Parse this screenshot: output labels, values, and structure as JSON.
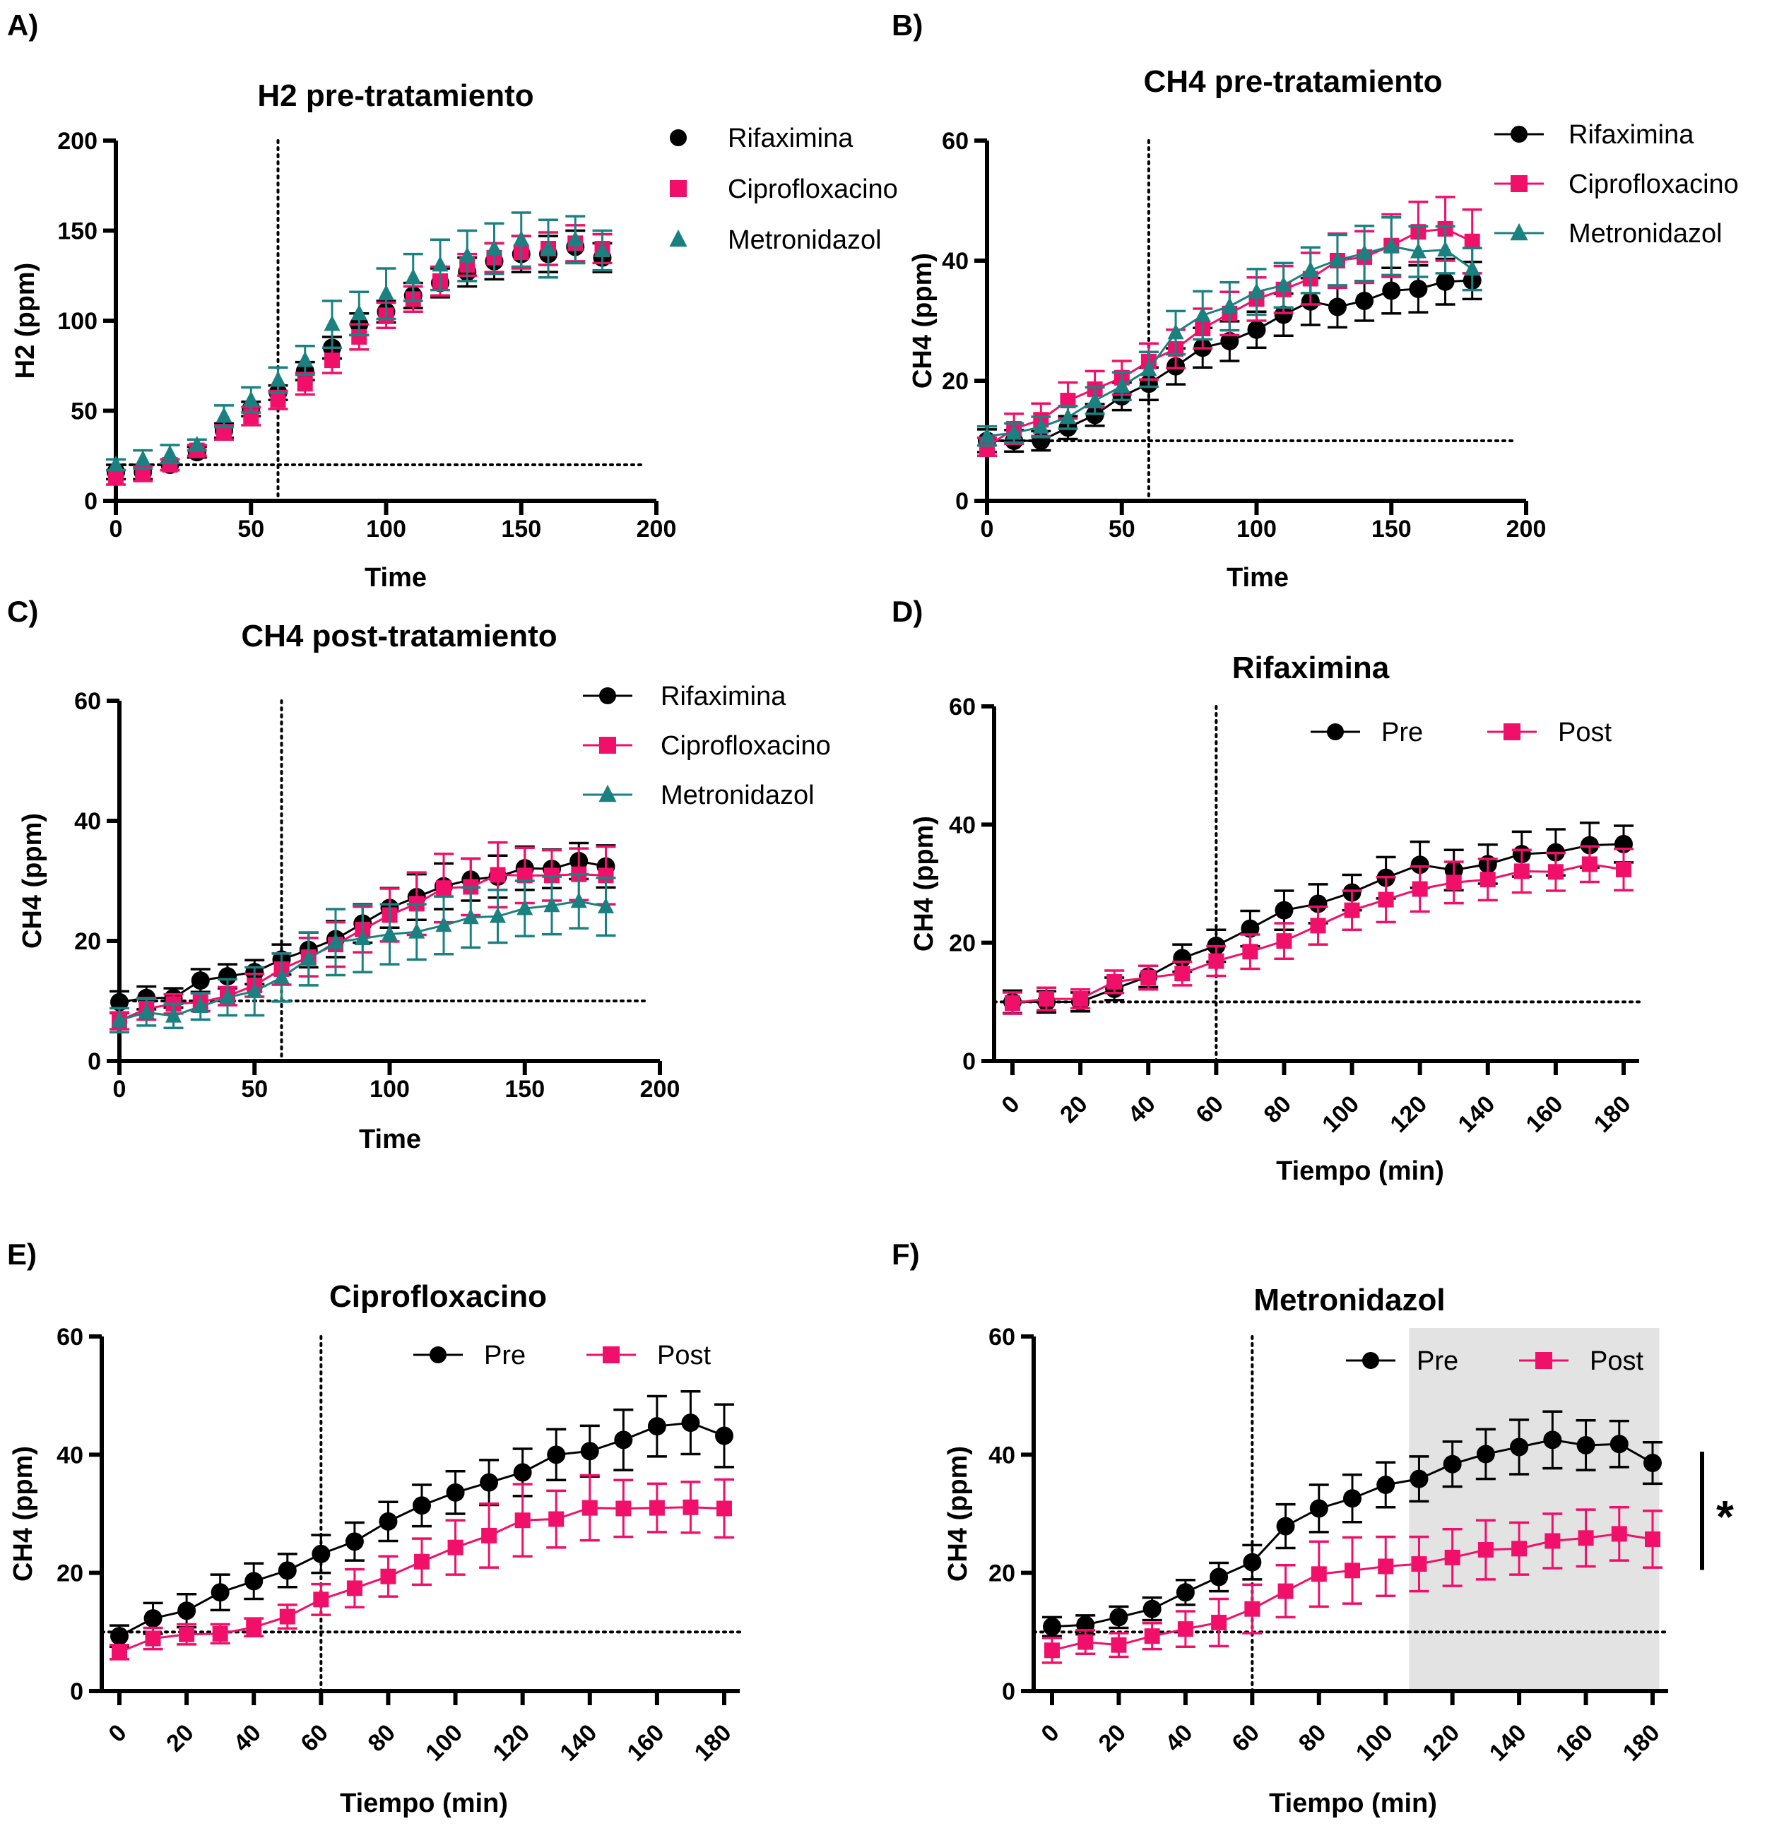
{
  "colors": {
    "Rifaximina": "#000000",
    "Ciprofloxacino": "#f0106a",
    "Metronidazol": "#1a8080",
    "Pre": "#000000",
    "Post": "#f0106a",
    "shade": "#e3e3e3"
  },
  "chart_data": [
    {
      "panel": "A)",
      "type": "scatter",
      "title": "H2 pre-tratamiento",
      "xlabel": "Time",
      "ylabel": "H2 (ppm)",
      "xlim": [
        0,
        200
      ],
      "ylim": [
        0,
        200
      ],
      "xticks": [
        0,
        50,
        100,
        150,
        200
      ],
      "yticks": [
        0,
        50,
        100,
        150,
        200
      ],
      "legend": "top-right",
      "connected": false,
      "vline_x": 60,
      "hline_y": 20,
      "x": [
        0,
        10,
        20,
        30,
        40,
        50,
        60,
        70,
        80,
        90,
        100,
        110,
        120,
        130,
        140,
        150,
        160,
        170,
        180
      ],
      "series": [
        {
          "name": "Rifaximina",
          "marker": "circle",
          "values": [
            16,
            16,
            20,
            27,
            39,
            51,
            60,
            72,
            85,
            98,
            105,
            114,
            121,
            127,
            133,
            137,
            137,
            141,
            135
          ],
          "errors": [
            4,
            4,
            3,
            3,
            4,
            4,
            4,
            5,
            6,
            6,
            6,
            7,
            8,
            8,
            10,
            10,
            10,
            9,
            8
          ]
        },
        {
          "name": "Ciprofloxacino",
          "marker": "square",
          "values": [
            13,
            15,
            20,
            28,
            38,
            47,
            56,
            65,
            78,
            91,
            103,
            112,
            122,
            131,
            135,
            138,
            140,
            143,
            140
          ],
          "errors": [
            4,
            4,
            3,
            3,
            4,
            5,
            5,
            6,
            7,
            7,
            7,
            7,
            8,
            6,
            8,
            9,
            9,
            10,
            8
          ]
        },
        {
          "name": "Metronidazol",
          "marker": "triangle",
          "values": [
            20,
            23,
            26,
            31,
            47,
            56,
            67,
            78,
            98,
            104,
            115,
            124,
            131,
            136,
            140,
            145,
            140,
            145,
            139
          ],
          "errors": [
            3,
            5,
            5,
            3,
            6,
            7,
            7,
            8,
            13,
            12,
            14,
            13,
            14,
            14,
            14,
            15,
            16,
            13,
            11
          ]
        }
      ]
    },
    {
      "panel": "B)",
      "type": "line",
      "title": "CH4 pre-tratamiento",
      "xlabel": "Time",
      "ylabel": "CH4 (ppm)",
      "xlim": [
        0,
        200
      ],
      "ylim": [
        0,
        60
      ],
      "xticks": [
        0,
        50,
        100,
        150,
        200
      ],
      "yticks": [
        0,
        20,
        40,
        60
      ],
      "legend": "top-right",
      "connected": true,
      "vline_x": 60,
      "hline_y": 10,
      "x": [
        0,
        10,
        20,
        30,
        40,
        50,
        60,
        70,
        80,
        90,
        100,
        110,
        120,
        130,
        140,
        150,
        160,
        170,
        180
      ],
      "series": [
        {
          "name": "Rifaximina",
          "marker": "circle",
          "values": [
            10,
            10,
            10,
            12.2,
            14.3,
            17.4,
            19.5,
            22.4,
            25.5,
            26.6,
            28.5,
            31,
            33.2,
            32.3,
            33.3,
            35,
            35.3,
            36.5,
            36.7
          ],
          "errors": [
            1.9,
            1.8,
            1.6,
            1.9,
            1.8,
            2.3,
            2.7,
            3,
            3.3,
            3.3,
            3,
            3.5,
            3.9,
            3.4,
            3.3,
            3.8,
            3.9,
            3.8,
            3.1
          ]
        },
        {
          "name": "Ciprofloxacino",
          "marker": "square",
          "values": [
            9,
            12,
            13.5,
            16.7,
            18.6,
            20.5,
            23.2,
            25.3,
            28.7,
            31.2,
            33.6,
            35.2,
            37,
            40,
            40.6,
            42.5,
            44.8,
            45.3,
            43.2
          ],
          "errors": [
            1.5,
            2.5,
            2.7,
            3,
            3,
            2.8,
            3,
            3.2,
            3.3,
            3.6,
            3.6,
            3.9,
            4.3,
            4.5,
            4.3,
            5.2,
            5,
            5.3,
            5.3
          ]
        },
        {
          "name": "Metronidazol",
          "marker": "triangle",
          "values": [
            10.8,
            11.3,
            12.3,
            13.9,
            16.7,
            19.1,
            21.9,
            28,
            30.9,
            32.4,
            34.8,
            35.9,
            38.4,
            40.1,
            41.2,
            42.4,
            41.5,
            41.8,
            38.6
          ],
          "errors": [
            1.6,
            1.6,
            1.7,
            1.9,
            2.2,
            2.3,
            2.9,
            3.6,
            4,
            4,
            3.8,
            3.7,
            3.8,
            4.2,
            4.6,
            4.8,
            4.2,
            3.9,
            3.5
          ]
        }
      ]
    },
    {
      "panel": "C)",
      "type": "line",
      "title": "CH4 post-tratamiento",
      "xlabel": "Time",
      "ylabel": "CH4 (ppm)",
      "xlim": [
        0,
        200
      ],
      "ylim": [
        0,
        60
      ],
      "xticks": [
        0,
        50,
        100,
        150,
        200
      ],
      "yticks": [
        0,
        20,
        40,
        60
      ],
      "legend": "top-right",
      "connected": true,
      "vline_x": 60,
      "hline_y": 10,
      "x": [
        0,
        10,
        20,
        30,
        40,
        50,
        60,
        70,
        80,
        90,
        100,
        110,
        120,
        130,
        140,
        150,
        160,
        170,
        180
      ],
      "series": [
        {
          "name": "Rifaximina",
          "marker": "circle",
          "values": [
            9.8,
            10.5,
            10.5,
            13.4,
            14.1,
            14.8,
            16.9,
            18.5,
            20.3,
            22.9,
            25.5,
            27.3,
            29.1,
            30.2,
            30.7,
            32.1,
            32,
            33.3,
            32.4
          ],
          "errors": [
            1.8,
            1.9,
            1.6,
            1.9,
            2,
            2,
            2.5,
            2.9,
            3,
            3.2,
            3.3,
            3.8,
            3.8,
            3.5,
            3.5,
            3.6,
            3.2,
            3,
            3.5
          ]
        },
        {
          "name": "Ciprofloxacino",
          "marker": "square",
          "values": [
            6.7,
            8.7,
            9.5,
            9.8,
            10.8,
            12.6,
            15.3,
            17.3,
            19.4,
            21.9,
            24.3,
            26.2,
            28.8,
            29,
            31,
            30.9,
            30.9,
            31.1,
            30.9
          ],
          "errors": [
            1.4,
            1.8,
            1.6,
            1.5,
            1.5,
            1.9,
            2.6,
            3.2,
            3.7,
            3.8,
            4.4,
            5.2,
            5.7,
            4.7,
            5.4,
            4.6,
            4.2,
            4.3,
            4.8
          ]
        },
        {
          "name": "Metronidazol",
          "marker": "triangle",
          "values": [
            6.8,
            8.1,
            7.5,
            9.1,
            10.6,
            11.6,
            13.9,
            17,
            19.8,
            20.4,
            21.1,
            21.5,
            22.6,
            23.9,
            24.1,
            25.4,
            25.9,
            26.6,
            25.7
          ],
          "errors": [
            2,
            2.2,
            2,
            2.2,
            3,
            4,
            4,
            4.4,
            5.5,
            5.6,
            5,
            4.6,
            4.8,
            5,
            4.4,
            4.6,
            4.8,
            4.5,
            4.8
          ]
        }
      ]
    },
    {
      "panel": "D)",
      "type": "line",
      "title": "Rifaximina",
      "xlabel": "Tiempo (min)",
      "ylabel": "CH4 (ppm)",
      "xlim": [
        0,
        180
      ],
      "ylim": [
        0,
        60
      ],
      "xticks": [
        0,
        20,
        40,
        60,
        80,
        100,
        120,
        140,
        160,
        180
      ],
      "yticks": [
        0,
        20,
        40,
        60
      ],
      "xtick_rotation": -45,
      "legend": "top-right",
      "connected": true,
      "vline_x": 60,
      "hline_y": 10,
      "x": [
        0,
        10,
        20,
        30,
        40,
        50,
        60,
        70,
        80,
        90,
        100,
        110,
        120,
        130,
        140,
        150,
        160,
        170,
        180
      ],
      "series": [
        {
          "name": "Pre",
          "marker": "circle",
          "values": [
            10,
            10,
            10,
            12.2,
            14.3,
            17.4,
            19.5,
            22.4,
            25.5,
            26.6,
            28.5,
            31,
            33.2,
            32.3,
            33.3,
            35,
            35.3,
            36.5,
            36.7
          ],
          "errors": [
            1.9,
            1.8,
            1.6,
            1.9,
            1.8,
            2.3,
            2.7,
            3,
            3.3,
            3.3,
            3,
            3.5,
            3.9,
            3.4,
            3.3,
            3.8,
            3.9,
            3.8,
            3.1
          ]
        },
        {
          "name": "Post",
          "marker": "square",
          "values": [
            9.8,
            10.5,
            10.5,
            13.4,
            14.1,
            14.8,
            16.9,
            18.5,
            20.3,
            22.9,
            25.5,
            27.3,
            29.1,
            30.2,
            30.7,
            32.1,
            32,
            33.3,
            32.4
          ],
          "errors": [
            1.8,
            1.9,
            1.6,
            1.9,
            2,
            2,
            2.5,
            2.9,
            3,
            3.2,
            3.3,
            3.8,
            3.8,
            3.5,
            3.5,
            3.6,
            3.2,
            3,
            3.5
          ]
        }
      ]
    },
    {
      "panel": "E)",
      "type": "line",
      "title": "Ciprofloxacino",
      "xlabel": "Tiempo (min)",
      "ylabel": "CH4 (ppm)",
      "xlim": [
        0,
        180
      ],
      "ylim": [
        0,
        60
      ],
      "xticks": [
        0,
        20,
        40,
        60,
        80,
        100,
        120,
        140,
        160,
        180
      ],
      "yticks": [
        0,
        20,
        40,
        60
      ],
      "xtick_rotation": -45,
      "legend": "top-right",
      "connected": true,
      "vline_x": 60,
      "hline_y": 10,
      "x": [
        0,
        10,
        20,
        30,
        40,
        50,
        60,
        70,
        80,
        90,
        100,
        110,
        120,
        130,
        140,
        150,
        160,
        170,
        180
      ],
      "series": [
        {
          "name": "Pre",
          "marker": "circle",
          "values": [
            9.3,
            12.3,
            13.6,
            16.7,
            18.6,
            20.4,
            23.2,
            25.3,
            28.7,
            31.4,
            33.6,
            35.3,
            37,
            40,
            40.6,
            42.5,
            44.8,
            45.4,
            43.2
          ],
          "errors": [
            1.8,
            2.6,
            2.8,
            3,
            3,
            2.8,
            3.2,
            3.2,
            3.3,
            3.5,
            3.6,
            3.8,
            4,
            4.3,
            4.3,
            5.1,
            5.1,
            5.3,
            5.3
          ]
        },
        {
          "name": "Post",
          "marker": "square",
          "values": [
            6.6,
            8.9,
            9.6,
            9.7,
            10.8,
            12.6,
            15.5,
            17.4,
            19.4,
            21.9,
            24.3,
            26.3,
            28.9,
            29.1,
            31,
            30.9,
            31,
            31.1,
            30.9
          ],
          "errors": [
            1.2,
            1.8,
            1.7,
            1.6,
            1.5,
            2,
            2.6,
            3.2,
            3.4,
            3.9,
            4.6,
            5.4,
            6.1,
            4.8,
            5.5,
            4.8,
            4.1,
            4.3,
            4.9
          ]
        }
      ]
    },
    {
      "panel": "F)",
      "type": "line",
      "title": "Metronidazol",
      "xlabel": "Tiempo (min)",
      "ylabel": "CH4 (ppm)",
      "xlim": [
        0,
        180
      ],
      "ylim": [
        0,
        60
      ],
      "xticks": [
        0,
        20,
        40,
        60,
        80,
        100,
        120,
        140,
        160,
        180
      ],
      "yticks": [
        0,
        20,
        40,
        60
      ],
      "xtick_rotation": -45,
      "legend": "top-right",
      "connected": true,
      "vline_x": 60,
      "hline_y": 10,
      "shaded_region_x": [
        107,
        182
      ],
      "significance": {
        "label": "*",
        "from_y": 20.5,
        "to_y": 40.5
      },
      "x": [
        0,
        10,
        20,
        30,
        40,
        50,
        60,
        70,
        80,
        90,
        100,
        110,
        120,
        130,
        140,
        150,
        160,
        170,
        180
      ],
      "series": [
        {
          "name": "Pre",
          "marker": "circle",
          "values": [
            10.9,
            11.2,
            12.5,
            13.9,
            16.7,
            19.3,
            21.8,
            27.9,
            30.9,
            32.6,
            34.9,
            35.9,
            38.4,
            40.1,
            41.3,
            42.5,
            41.6,
            41.8,
            38.6
          ],
          "errors": [
            1.6,
            1.6,
            1.8,
            1.9,
            2.1,
            2.4,
            2.9,
            3.7,
            4,
            4,
            3.8,
            3.8,
            3.8,
            4.2,
            4.6,
            4.8,
            4.2,
            3.9,
            3.5
          ]
        },
        {
          "name": "Post",
          "marker": "square",
          "values": [
            6.9,
            8.3,
            7.8,
            9.3,
            10.5,
            11.6,
            13.9,
            16.9,
            19.8,
            20.4,
            21.1,
            21.5,
            22.6,
            23.9,
            24.1,
            25.4,
            25.9,
            26.6,
            25.7
          ],
          "errors": [
            2.1,
            2,
            2,
            2.2,
            3,
            4,
            4.1,
            4.4,
            5.5,
            5.6,
            5,
            4.6,
            4.8,
            5,
            4.4,
            4.6,
            4.8,
            4.5,
            4.8
          ]
        }
      ]
    }
  ]
}
